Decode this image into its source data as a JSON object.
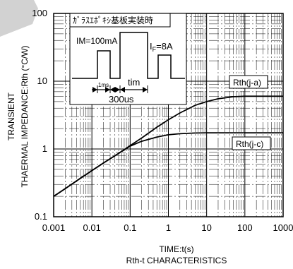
{
  "chart_data": {
    "type": "line",
    "title": "",
    "caption": "Rth-t CHARACTERISTICS",
    "xlabel": "TIME:t(s)",
    "ylabel_line1": "TRANSIENT",
    "ylabel_line2": "THAERMAL IMPEDANCE:Rth (°C/W)",
    "x_scale": "log",
    "y_scale": "log",
    "xlim": [
      0.001,
      1000
    ],
    "ylim": [
      0.1,
      100
    ],
    "x_ticks": [
      "0.001",
      "0.01",
      "0.1",
      "1",
      "10",
      "100",
      "1000"
    ],
    "y_ticks": [
      "0.1",
      "1",
      "10",
      "100"
    ],
    "grid": true,
    "annotations": {
      "board_label": "ｶﾞﾗｽｴﾎﾟｷｼ基板実装時",
      "im_label": "IM=100mA",
      "if_label_main": "I",
      "if_label_sub": "F",
      "if_label_value": "=8A",
      "t1_label": "1ms",
      "tim_label": "tim",
      "period_label": "300us"
    },
    "series": [
      {
        "name": "Rth(j-a)",
        "x": [
          0.001,
          0.002,
          0.005,
          0.01,
          0.02,
          0.05,
          0.1,
          0.2,
          0.5,
          1,
          2,
          5,
          10,
          20,
          50,
          100,
          200,
          500,
          1000
        ],
        "y": [
          0.2,
          0.26,
          0.37,
          0.48,
          0.62,
          0.86,
          1.12,
          1.45,
          2.1,
          2.7,
          3.4,
          4.4,
          5.0,
          5.5,
          5.9,
          6.0,
          6.0,
          6.0,
          6.0
        ]
      },
      {
        "name": "Rth(j-c)",
        "x": [
          0.001,
          0.002,
          0.005,
          0.01,
          0.02,
          0.05,
          0.1,
          0.2,
          0.5,
          1,
          2,
          5,
          10,
          20,
          50,
          100,
          200,
          500,
          1000
        ],
        "y": [
          0.2,
          0.26,
          0.37,
          0.48,
          0.62,
          0.86,
          1.1,
          1.3,
          1.5,
          1.62,
          1.68,
          1.72,
          1.73,
          1.73,
          1.73,
          1.73,
          1.73,
          1.73,
          1.73
        ]
      }
    ]
  }
}
